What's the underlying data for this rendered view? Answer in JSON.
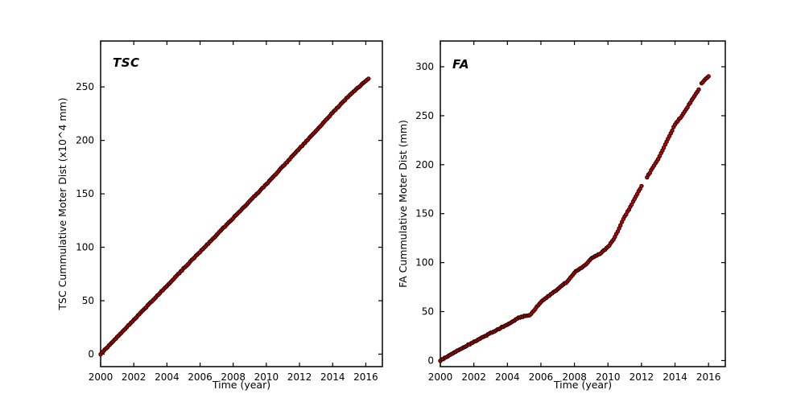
{
  "window": {
    "background": "#ffffff"
  },
  "style": {
    "marker_fill": "#cc0000",
    "marker_edge": "#1a0000",
    "axis_color": "#000000",
    "text_color": "#000000",
    "tick_fontsize": 12,
    "marker_radius": 2.2
  },
  "chart_data": [
    {
      "type": "scatter",
      "name": "TSC",
      "annotation": "TSC",
      "xlabel": "Time (year)",
      "ylabel": "TSC Cummulative Moter Dist (x10^4 mm)",
      "xlim": [
        2000,
        2017
      ],
      "ylim": [
        -11.7,
        293
      ],
      "xticks": [
        2000,
        2002,
        2004,
        2006,
        2008,
        2010,
        2012,
        2014,
        2016
      ],
      "yticks": [
        0,
        50,
        100,
        150,
        200,
        250
      ],
      "x_start": 2000.0,
      "x_end": 2016.17,
      "sample_step_years": 0.08333,
      "jitter_amplitude": 0.7,
      "gaps": [],
      "points_trend": [
        [
          2000,
          0
        ],
        [
          2005,
          80
        ],
        [
          2010,
          159
        ],
        [
          2013,
          209
        ],
        [
          2014,
          226
        ],
        [
          2015,
          242
        ],
        [
          2015.8,
          253
        ],
        [
          2016.17,
          258
        ]
      ],
      "grid": false,
      "legend": "none"
    },
    {
      "type": "scatter",
      "name": "FA",
      "annotation": "FA",
      "xlabel": "Time (year)",
      "ylabel": "FA Cummulative Moter Dist (mm)",
      "xlim": [
        2000,
        2017
      ],
      "ylim": [
        -6.2,
        326.3
      ],
      "xticks": [
        2000,
        2002,
        2004,
        2006,
        2008,
        2010,
        2012,
        2014,
        2016
      ],
      "yticks": [
        0,
        50,
        100,
        150,
        200,
        250,
        300
      ],
      "x_start": 2000.0,
      "x_end": 2016.05,
      "sample_step_years": 0.08333,
      "jitter_amplitude": 0.9,
      "gaps": [
        [
          2012.06,
          2012.32
        ],
        [
          2015.44,
          2015.55
        ]
      ],
      "points_trend": [
        [
          2000,
          0
        ],
        [
          2001,
          10
        ],
        [
          2002,
          19
        ],
        [
          2003,
          28
        ],
        [
          2004,
          37
        ],
        [
          2004.7,
          44
        ],
        [
          2005.4,
          47
        ],
        [
          2006,
          60
        ],
        [
          2006.6,
          68
        ],
        [
          2007,
          73
        ],
        [
          2007.6,
          81
        ],
        [
          2008,
          90
        ],
        [
          2008.6,
          97
        ],
        [
          2009,
          104
        ],
        [
          2009.6,
          110
        ],
        [
          2010,
          116
        ],
        [
          2010.35,
          124
        ],
        [
          2011,
          147
        ],
        [
          2011.5,
          162
        ],
        [
          2012,
          178
        ],
        [
          2013,
          206
        ],
        [
          2014,
          241
        ],
        [
          2014.5,
          252
        ],
        [
          2015,
          266
        ],
        [
          2015.43,
          277
        ],
        [
          2015.56,
          283
        ],
        [
          2016.05,
          291
        ]
      ],
      "grid": false,
      "legend": "none"
    }
  ]
}
